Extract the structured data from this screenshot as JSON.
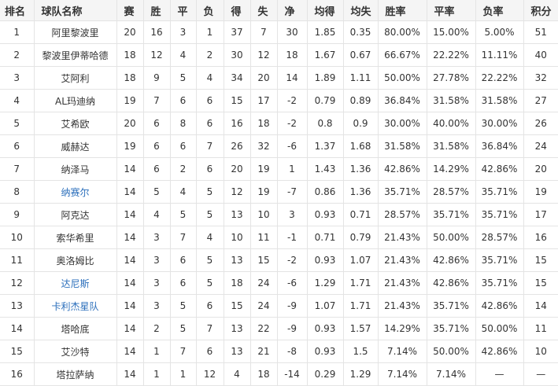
{
  "headers": [
    "排名",
    "球队名称",
    "赛",
    "胜",
    "平",
    "负",
    "得",
    "失",
    "净",
    "均得",
    "均失",
    "胜率",
    "平率",
    "负率",
    "积分"
  ],
  "link_color": "#2a6ebb",
  "rows": [
    {
      "cells": [
        "1",
        "阿里黎波里",
        "20",
        "16",
        "3",
        "1",
        "37",
        "7",
        "30",
        "1.85",
        "0.35",
        "80.00%",
        "15.00%",
        "5.00%",
        "51"
      ],
      "link": false
    },
    {
      "cells": [
        "2",
        "黎波里伊蒂哈德",
        "18",
        "12",
        "4",
        "2",
        "30",
        "12",
        "18",
        "1.67",
        "0.67",
        "66.67%",
        "22.22%",
        "11.11%",
        "40"
      ],
      "link": false
    },
    {
      "cells": [
        "3",
        "艾阿利",
        "18",
        "9",
        "5",
        "4",
        "34",
        "20",
        "14",
        "1.89",
        "1.11",
        "50.00%",
        "27.78%",
        "22.22%",
        "32"
      ],
      "link": false
    },
    {
      "cells": [
        "4",
        "AL玛迪纳",
        "19",
        "7",
        "6",
        "6",
        "15",
        "17",
        "-2",
        "0.79",
        "0.89",
        "36.84%",
        "31.58%",
        "31.58%",
        "27"
      ],
      "link": false
    },
    {
      "cells": [
        "5",
        "艾希欧",
        "20",
        "6",
        "8",
        "6",
        "16",
        "18",
        "-2",
        "0.8",
        "0.9",
        "30.00%",
        "40.00%",
        "30.00%",
        "26"
      ],
      "link": false
    },
    {
      "cells": [
        "6",
        "威赫达",
        "19",
        "6",
        "6",
        "7",
        "26",
        "32",
        "-6",
        "1.37",
        "1.68",
        "31.58%",
        "31.58%",
        "36.84%",
        "24"
      ],
      "link": false
    },
    {
      "cells": [
        "7",
        "纳泽马",
        "14",
        "6",
        "2",
        "6",
        "20",
        "19",
        "1",
        "1.43",
        "1.36",
        "42.86%",
        "14.29%",
        "42.86%",
        "20"
      ],
      "link": false
    },
    {
      "cells": [
        "8",
        "纳赛尔",
        "14",
        "5",
        "4",
        "5",
        "12",
        "19",
        "-7",
        "0.86",
        "1.36",
        "35.71%",
        "28.57%",
        "35.71%",
        "19"
      ],
      "link": true
    },
    {
      "cells": [
        "9",
        "阿克达",
        "14",
        "4",
        "5",
        "5",
        "13",
        "10",
        "3",
        "0.93",
        "0.71",
        "28.57%",
        "35.71%",
        "35.71%",
        "17"
      ],
      "link": false
    },
    {
      "cells": [
        "10",
        "索华希里",
        "14",
        "3",
        "7",
        "4",
        "10",
        "11",
        "-1",
        "0.71",
        "0.79",
        "21.43%",
        "50.00%",
        "28.57%",
        "16"
      ],
      "link": false
    },
    {
      "cells": [
        "11",
        "奥洛姆比",
        "14",
        "3",
        "6",
        "5",
        "13",
        "15",
        "-2",
        "0.93",
        "1.07",
        "21.43%",
        "42.86%",
        "35.71%",
        "15"
      ],
      "link": false
    },
    {
      "cells": [
        "12",
        "达尼斯",
        "14",
        "3",
        "6",
        "5",
        "18",
        "24",
        "-6",
        "1.29",
        "1.71",
        "21.43%",
        "42.86%",
        "35.71%",
        "15"
      ],
      "link": true
    },
    {
      "cells": [
        "13",
        "卡利杰星队",
        "14",
        "3",
        "5",
        "6",
        "15",
        "24",
        "-9",
        "1.07",
        "1.71",
        "21.43%",
        "35.71%",
        "42.86%",
        "14"
      ],
      "link": true
    },
    {
      "cells": [
        "14",
        "塔哈底",
        "14",
        "2",
        "5",
        "7",
        "13",
        "22",
        "-9",
        "0.93",
        "1.57",
        "14.29%",
        "35.71%",
        "50.00%",
        "11"
      ],
      "link": false
    },
    {
      "cells": [
        "15",
        "艾沙特",
        "14",
        "1",
        "7",
        "6",
        "13",
        "21",
        "-8",
        "0.93",
        "1.5",
        "7.14%",
        "50.00%",
        "42.86%",
        "10"
      ],
      "link": false
    },
    {
      "cells": [
        "16",
        "塔拉萨纳",
        "14",
        "1",
        "1",
        "12",
        "4",
        "18",
        "-14",
        "0.29",
        "1.29",
        "7.14%",
        "7.14%",
        "—",
        "—"
      ],
      "link": false
    }
  ]
}
